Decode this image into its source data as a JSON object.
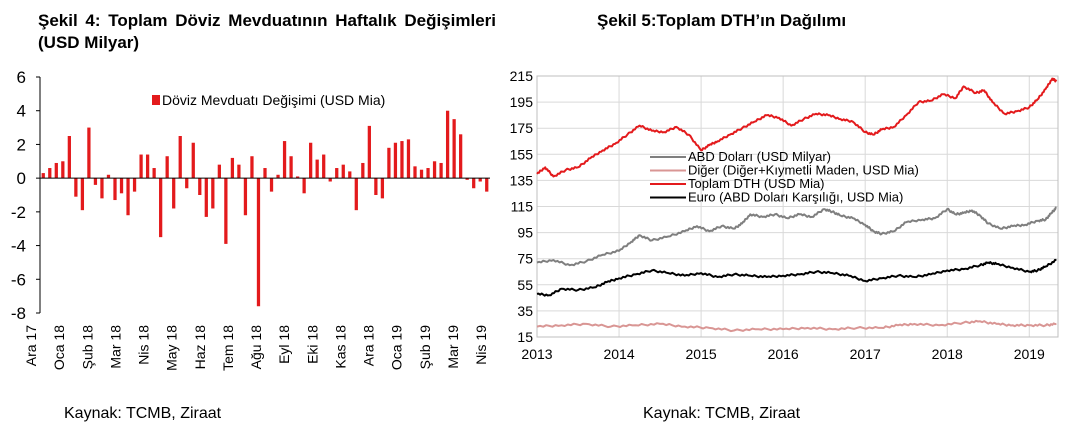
{
  "chart_data": [
    {
      "type": "bar",
      "title": "Şekil 4: Toplam Döviz Mevduatının Haftalık Değişimleri (USD Milyar)",
      "ylim": [
        -8,
        6
      ],
      "yticks": [
        "6",
        "4",
        "2",
        "0",
        "-2",
        "-4",
        "-6",
        "-8"
      ],
      "ytick_values": [
        6,
        4,
        2,
        0,
        -2,
        -4,
        -6,
        -8
      ],
      "xticks": [
        "Ara 17",
        "Oca 18",
        "Şub 18",
        "Mar 18",
        "Nis 18",
        "May 18",
        "Haz 18",
        "Tem 18",
        "Ağu 18",
        "Eyl 18",
        "Eki 18",
        "Kas 18",
        "Ara 18",
        "Oca 19",
        "Şub 19",
        "Mar 19",
        "Nis 19"
      ],
      "legend": "top-center",
      "color": "#e31a1c",
      "series": [
        {
          "name": "Döviz Mevduatı Değişimi (USD Mia)",
          "values": [
            0.3,
            0.6,
            0.9,
            1.0,
            2.5,
            -1.1,
            -1.9,
            3.0,
            -0.4,
            -1.2,
            0.2,
            -1.3,
            -0.9,
            -2.2,
            -0.8,
            1.4,
            1.4,
            0.6,
            -3.5,
            1.3,
            -1.8,
            2.5,
            -0.6,
            2.1,
            -1.0,
            -2.3,
            -1.8,
            0.8,
            -3.9,
            1.2,
            0.8,
            -2.2,
            1.3,
            -7.6,
            0.6,
            -0.8,
            0.2,
            2.2,
            1.3,
            0.1,
            -0.9,
            2.1,
            1.1,
            1.4,
            -0.2,
            0.6,
            0.8,
            0.4,
            -1.9,
            0.9,
            3.1,
            -1.0,
            -1.2,
            1.8,
            2.1,
            2.2,
            2.3,
            0.7,
            0.5,
            0.6,
            1.0,
            0.9,
            4.0,
            3.5,
            2.6,
            -0.1,
            -0.6,
            -0.2,
            -0.8
          ]
        }
      ]
    },
    {
      "type": "line",
      "title": "Şekil 5:Toplam DTH’ın Dağılımı",
      "ylim": [
        15,
        215
      ],
      "xlim": [
        2013,
        2019.35
      ],
      "grid": true,
      "legend": "center-left",
      "yticks": [
        "215",
        "195",
        "175",
        "155",
        "135",
        "115",
        "95",
        "75",
        "55",
        "35",
        "15"
      ],
      "ytick_values": [
        215,
        195,
        175,
        155,
        135,
        115,
        95,
        75,
        55,
        35,
        15
      ],
      "xticks": [
        "2013",
        "2014",
        "2015",
        "2016",
        "2017",
        "2018",
        "2019"
      ],
      "xtick_values": [
        2013,
        2014,
        2015,
        2016,
        2017,
        2018,
        2019
      ],
      "series": [
        {
          "name": "ABD Doları (USD Milyar)",
          "color": "#7f7f7f",
          "x": [
            2013.0,
            2013.2,
            2013.4,
            2013.6,
            2013.8,
            2014.0,
            2014.15,
            2014.25,
            2014.4,
            2014.6,
            2014.8,
            2014.95,
            2015.1,
            2015.25,
            2015.4,
            2015.5,
            2015.6,
            2015.75,
            2015.9,
            2016.05,
            2016.2,
            2016.35,
            2016.5,
            2016.6,
            2016.7,
            2016.85,
            2017.0,
            2017.1,
            2017.2,
            2017.35,
            2017.5,
            2017.7,
            2017.85,
            2018.0,
            2018.1,
            2018.2,
            2018.3,
            2018.4,
            2018.5,
            2018.65,
            2018.8,
            2018.95,
            2019.1,
            2019.2,
            2019.27,
            2019.33
          ],
          "y": [
            72,
            74,
            70,
            73,
            78,
            81,
            88,
            93,
            89,
            92,
            96,
            100,
            96,
            100,
            98,
            102,
            109,
            107,
            109,
            106,
            109,
            107,
            113,
            111,
            108,
            106,
            101,
            96,
            94,
            96,
            103,
            105,
            106,
            113,
            109,
            110,
            112,
            108,
            102,
            98,
            100,
            101,
            104,
            105,
            110,
            114
          ]
        },
        {
          "name": "Diğer (Diğer+Kıymetli Maden, USD Mia)",
          "color": "#d99694",
          "x": [
            2013.0,
            2013.3,
            2013.6,
            2013.9,
            2014.2,
            2014.5,
            2014.8,
            2015.1,
            2015.4,
            2015.7,
            2016.0,
            2016.3,
            2016.6,
            2016.9,
            2017.2,
            2017.4,
            2017.6,
            2017.9,
            2018.2,
            2018.4,
            2018.6,
            2018.8,
            2019.0,
            2019.2,
            2019.33
          ],
          "y": [
            23,
            24,
            25,
            23,
            24,
            25,
            23,
            22,
            20,
            21,
            21,
            22,
            21,
            22,
            22,
            24,
            25,
            24,
            26,
            27,
            25,
            24,
            24,
            24,
            25
          ]
        },
        {
          "name": "Toplam DTH (USD Mia)",
          "color": "#e31a1c",
          "x": [
            2013.0,
            2013.1,
            2013.2,
            2013.35,
            2013.5,
            2013.65,
            2013.8,
            2013.95,
            2014.1,
            2014.25,
            2014.4,
            2014.55,
            2014.7,
            2014.85,
            2015.0,
            2015.1,
            2015.2,
            2015.35,
            2015.5,
            2015.65,
            2015.8,
            2015.95,
            2016.1,
            2016.25,
            2016.4,
            2016.55,
            2016.7,
            2016.85,
            2017.0,
            2017.1,
            2017.2,
            2017.35,
            2017.5,
            2017.65,
            2017.8,
            2017.95,
            2018.1,
            2018.2,
            2018.35,
            2018.45,
            2018.55,
            2018.7,
            2018.85,
            2019.0,
            2019.1,
            2019.2,
            2019.28,
            2019.33
          ],
          "y": [
            140,
            145,
            138,
            143,
            145,
            152,
            158,
            163,
            170,
            177,
            173,
            172,
            176,
            170,
            158,
            162,
            165,
            170,
            175,
            180,
            185,
            183,
            177,
            182,
            186,
            185,
            182,
            180,
            172,
            170,
            174,
            176,
            185,
            195,
            196,
            201,
            198,
            207,
            202,
            204,
            195,
            186,
            188,
            191,
            197,
            205,
            213,
            211
          ]
        },
        {
          "name": "Euro (ABD Doları Karşılığı, USD Mia)",
          "color": "#000000",
          "x": [
            2013.0,
            2013.15,
            2013.3,
            2013.5,
            2013.7,
            2013.85,
            2014.0,
            2014.2,
            2014.4,
            2014.6,
            2014.8,
            2015.0,
            2015.2,
            2015.4,
            2015.6,
            2015.8,
            2016.0,
            2016.2,
            2016.4,
            2016.6,
            2016.8,
            2017.0,
            2017.2,
            2017.4,
            2017.6,
            2017.8,
            2018.0,
            2018.2,
            2018.4,
            2018.5,
            2018.6,
            2018.8,
            2019.0,
            2019.1,
            2019.2,
            2019.33
          ],
          "y": [
            48,
            47,
            52,
            51,
            53,
            57,
            60,
            63,
            66,
            64,
            62,
            64,
            61,
            63,
            62,
            61,
            62,
            63,
            65,
            64,
            62,
            58,
            60,
            62,
            61,
            63,
            66,
            67,
            70,
            72,
            71,
            68,
            65,
            66,
            69,
            74
          ]
        }
      ]
    }
  ],
  "text": {
    "title_left": "Şekil 4: Toplam Döviz Mevduatının Haftalık Değişimleri (USD Milyar)",
    "title_right": "Şekil 5:Toplam DTH’ın Dağılımı",
    "source_left": "Kaynak: TCMB, Ziraat",
    "source_right": "Kaynak: TCMB, Ziraat"
  }
}
